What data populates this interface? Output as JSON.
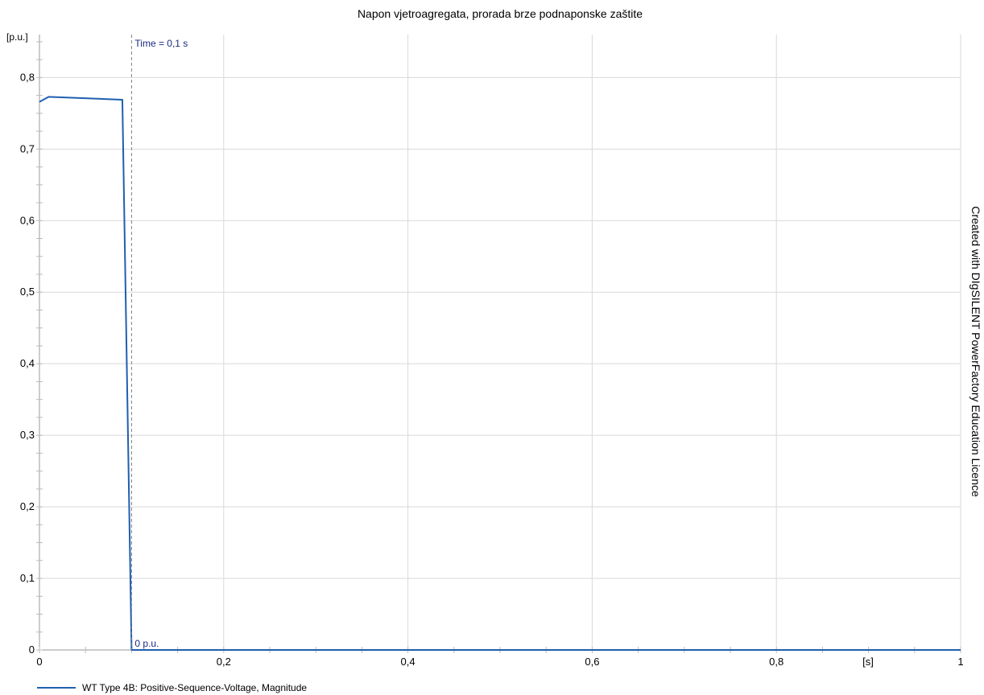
{
  "chart_data": {
    "type": "line",
    "title": "Napon vjetroagregata, prorada brze podnaponske zaštite",
    "x_unit": "[s]",
    "y_unit": "[p.u.]",
    "xlim": [
      0,
      1
    ],
    "ylim": [
      0,
      0.86
    ],
    "x_ticks": [
      0,
      0.2,
      0.4,
      0.6,
      0.8,
      1
    ],
    "x_tick_labels": [
      "0",
      "0,2",
      "0,4",
      "0,6",
      "0,8",
      "1"
    ],
    "y_ticks": [
      0,
      0.1,
      0.2,
      0.3,
      0.4,
      0.5,
      0.6,
      0.7,
      0.8
    ],
    "y_tick_labels": [
      "0",
      "0,1",
      "0,2",
      "0,3",
      "0,4",
      "0,5",
      "0,6",
      "0,7",
      "0,8"
    ],
    "grid": true,
    "series": [
      {
        "name": "WT Type 4B: Positive-Sequence-Voltage, Magnitude",
        "color": "#1f5fb0",
        "x": [
          0,
          0.01,
          0.09,
          0.1,
          1.0
        ],
        "y": [
          0.766,
          0.773,
          0.769,
          0.0,
          0.0
        ]
      }
    ],
    "annotations": {
      "vline_x": 0.1,
      "time_label": "Time = 0,1 s",
      "value_label": "0 p.u."
    },
    "legend_position": "bottom-left"
  },
  "watermark": "Created with DIgSILENT PowerFactory Education Licence"
}
